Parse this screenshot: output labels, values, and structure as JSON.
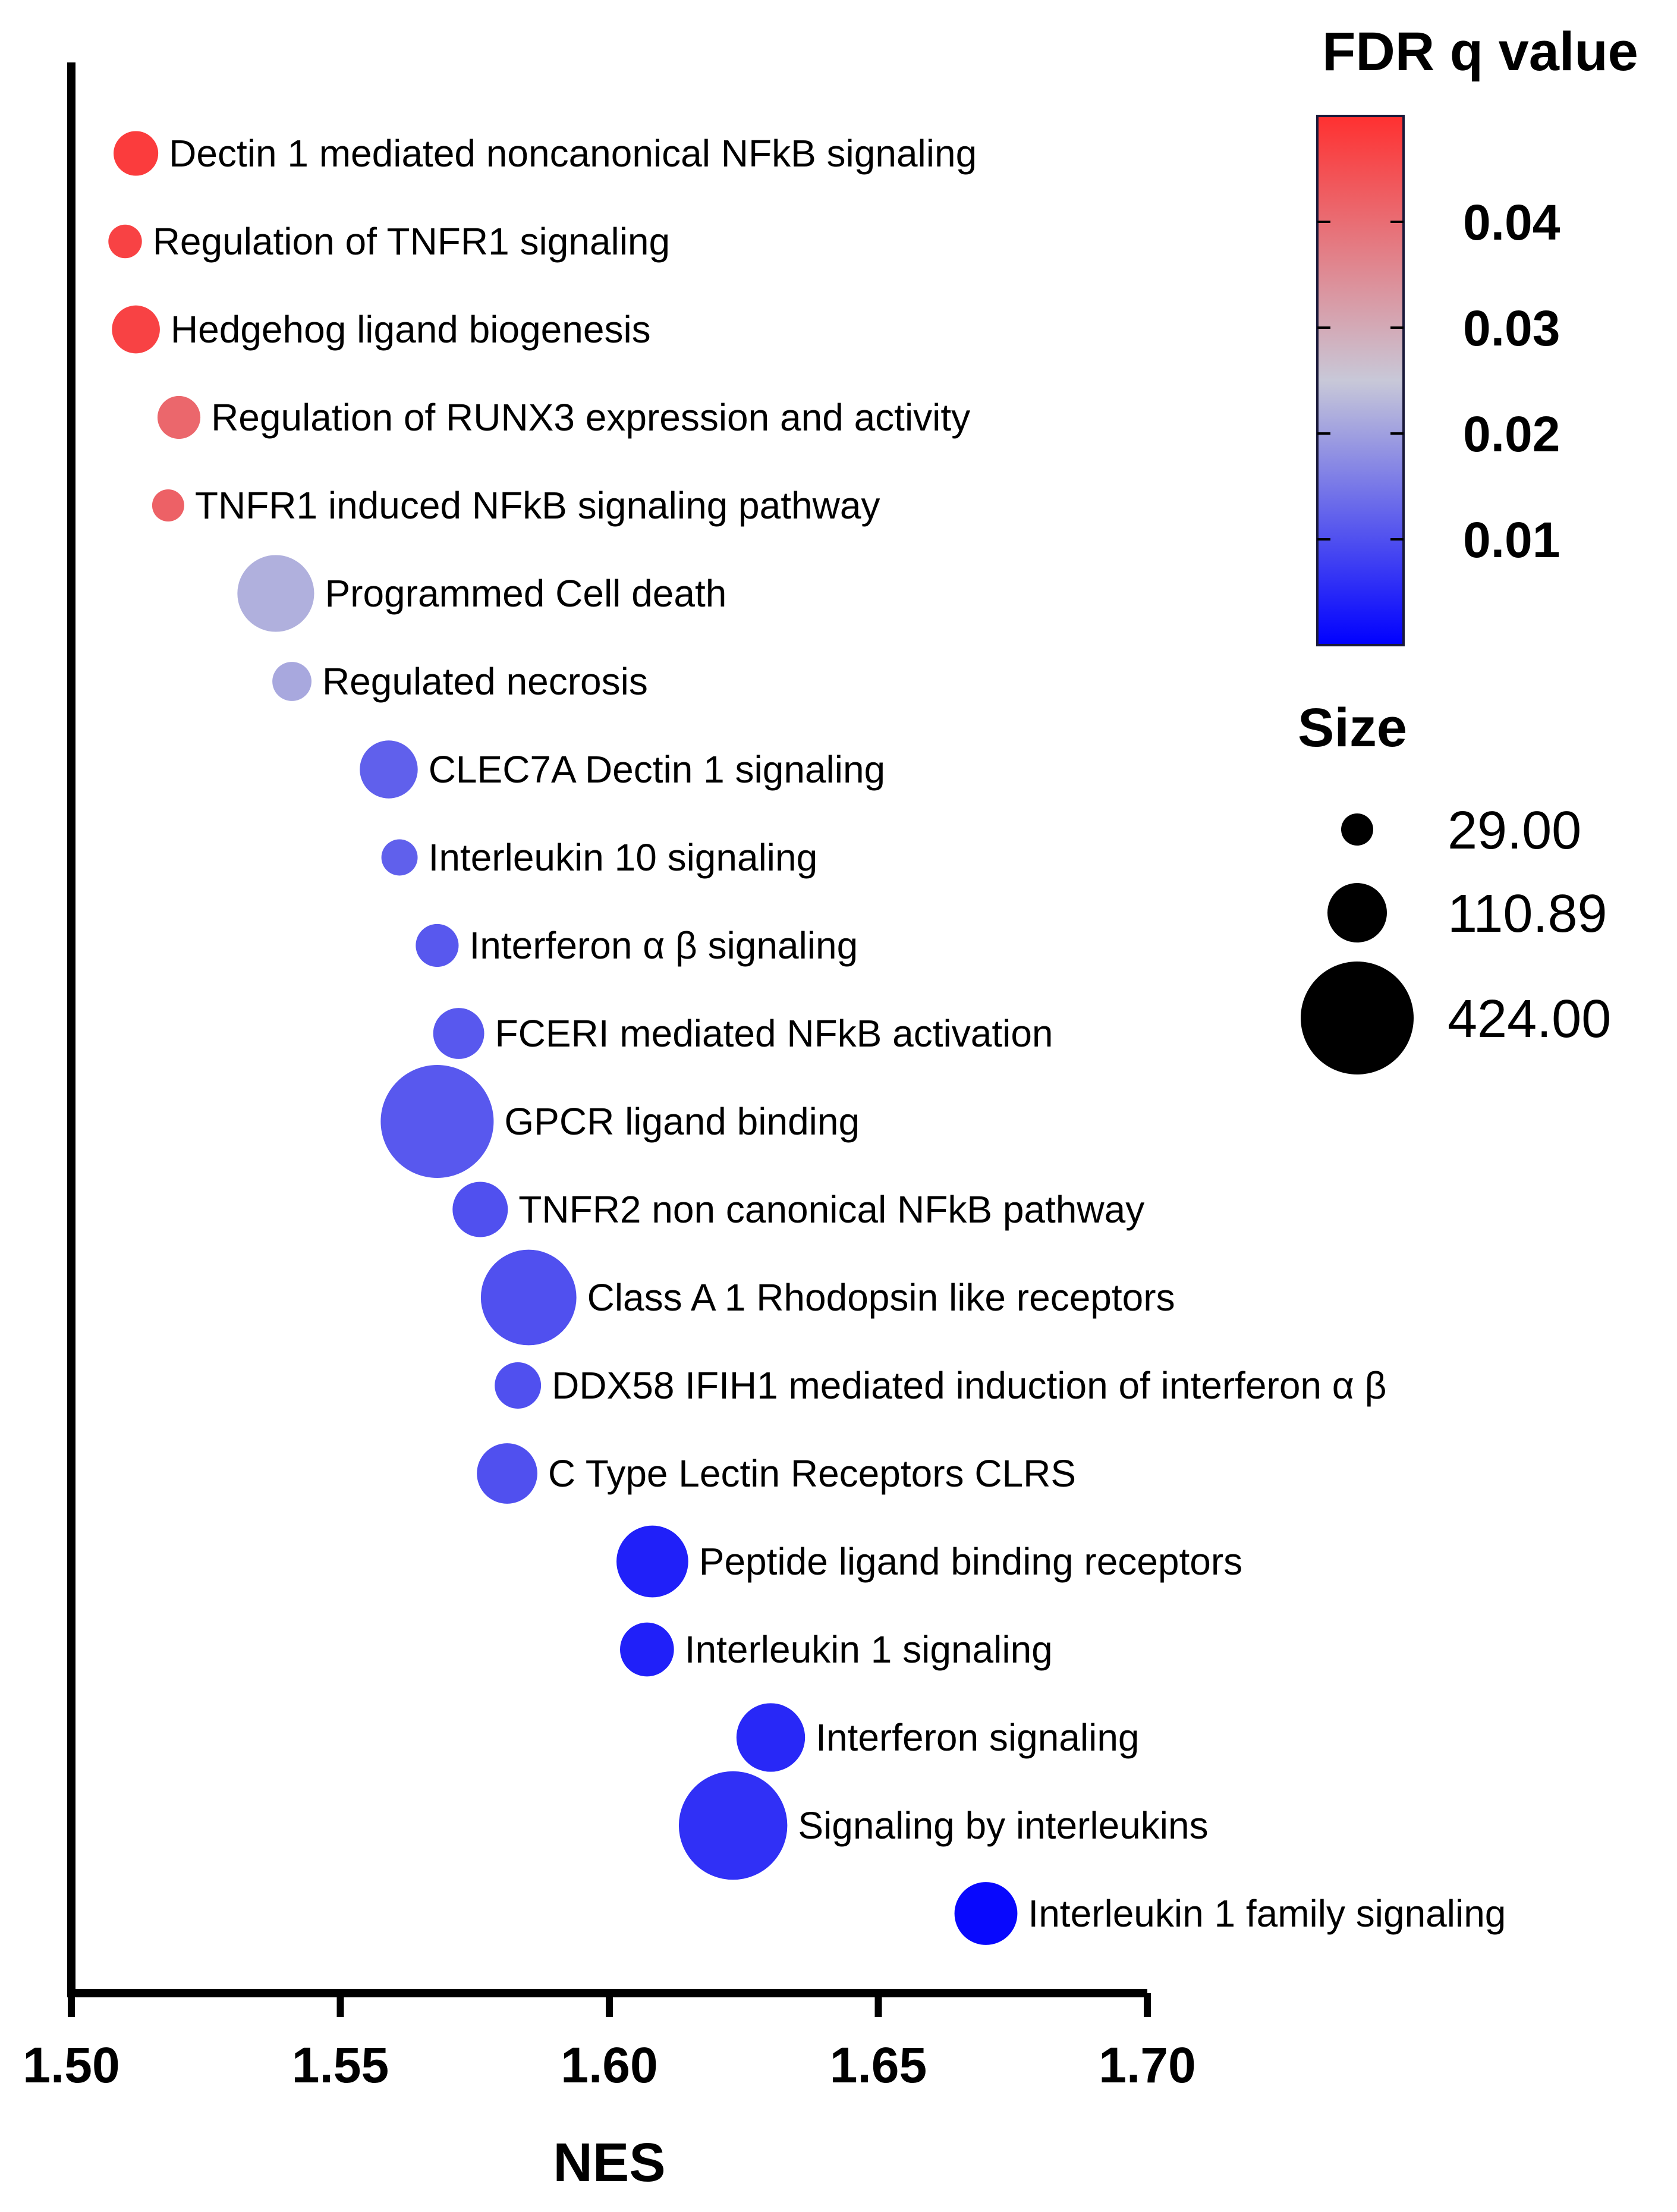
{
  "chart_data": {
    "type": "scatter",
    "title": "",
    "xlabel": "NES",
    "ylabel": "",
    "xlim": [
      1.5,
      1.7
    ],
    "x_ticks": [
      "1.50",
      "1.55",
      "1.60",
      "1.65",
      "1.70"
    ],
    "points": [
      {
        "label": "Dectin 1 mediated noncanonical NFkB signaling",
        "nes": 1.512,
        "fdr": 0.048,
        "size": 60
      },
      {
        "label": "Regulation of TNFR1 signaling",
        "nes": 1.51,
        "fdr": 0.047,
        "size": 32
      },
      {
        "label": "Hedgehog ligand biogenesis",
        "nes": 1.512,
        "fdr": 0.047,
        "size": 70
      },
      {
        "label": "Regulation of RUNX3 expression and activity",
        "nes": 1.52,
        "fdr": 0.041,
        "size": 55
      },
      {
        "label": "TNFR1 induced NFkB signaling pathway",
        "nes": 1.518,
        "fdr": 0.042,
        "size": 29
      },
      {
        "label": "Programmed Cell death",
        "nes": 1.538,
        "fdr": 0.022,
        "size": 190
      },
      {
        "label": "Regulated necrosis",
        "nes": 1.541,
        "fdr": 0.021,
        "size": 45
      },
      {
        "label": "CLEC7A Dectin 1 signaling",
        "nes": 1.559,
        "fdr": 0.012,
        "size": 105
      },
      {
        "label": "Interleukin 10 signaling",
        "nes": 1.561,
        "fdr": 0.012,
        "size": 38
      },
      {
        "label": "Interferon α β signaling",
        "nes": 1.568,
        "fdr": 0.011,
        "size": 55
      },
      {
        "label": "FCERI mediated NFkB activation",
        "nes": 1.572,
        "fdr": 0.011,
        "size": 80
      },
      {
        "label": "GPCR ligand binding",
        "nes": 1.568,
        "fdr": 0.011,
        "size": 424
      },
      {
        "label": "TNFR2 non canonical NFkB pathway",
        "nes": 1.576,
        "fdr": 0.01,
        "size": 95
      },
      {
        "label": "Class A 1 Rhodopsin like receptors",
        "nes": 1.585,
        "fdr": 0.01,
        "size": 300
      },
      {
        "label": "DDX58 IFIH1 mediated induction of interferon α β",
        "nes": 1.583,
        "fdr": 0.01,
        "size": 65
      },
      {
        "label": "C Type Lectin Receptors CLRS",
        "nes": 1.581,
        "fdr": 0.01,
        "size": 115
      },
      {
        "label": "Peptide ligand binding receptors",
        "nes": 1.608,
        "fdr": 0.004,
        "size": 165
      },
      {
        "label": "Interleukin 1 signaling",
        "nes": 1.607,
        "fdr": 0.004,
        "size": 90
      },
      {
        "label": "Interferon signaling",
        "nes": 1.63,
        "fdr": 0.005,
        "size": 150
      },
      {
        "label": "Signaling by interleukins",
        "nes": 1.623,
        "fdr": 0.006,
        "size": 390
      },
      {
        "label": "Interleukin 1 family signaling",
        "nes": 1.67,
        "fdr": 0.001,
        "size": 125
      }
    ],
    "color_legend": {
      "title": "FDR q value",
      "ticks": [
        "0.04",
        "0.03",
        "0.02",
        "0.01"
      ],
      "tick_values": [
        0.04,
        0.03,
        0.02,
        0.01
      ],
      "range": [
        0.0,
        0.05
      ],
      "low_color": "#0000ff",
      "mid_color": "#c8c8d8",
      "high_color": "#ff3030"
    },
    "size_legend": {
      "title": "Size",
      "entries": [
        {
          "label": "29.00",
          "value": 29
        },
        {
          "label": "110.89",
          "value": 110.89
        },
        {
          "label": "424.00",
          "value": 424
        }
      ]
    }
  }
}
